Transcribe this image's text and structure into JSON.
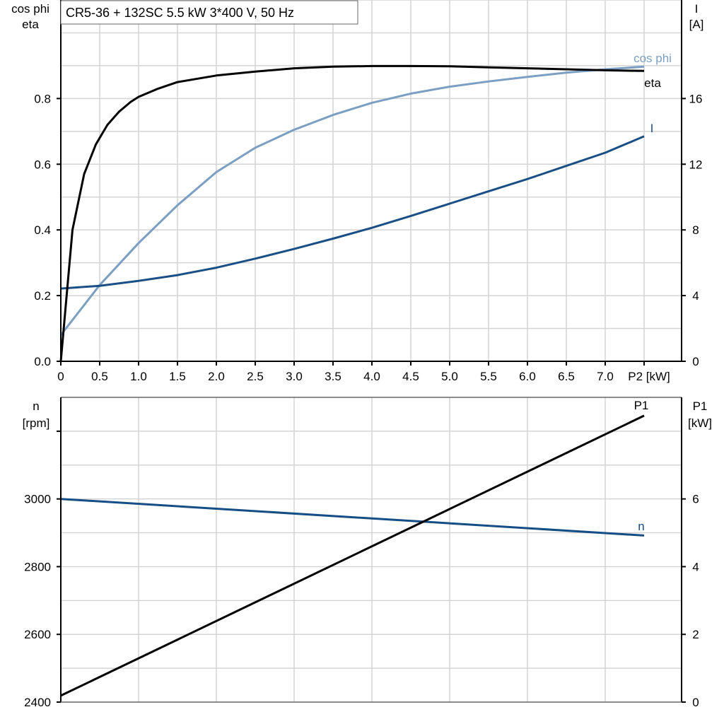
{
  "title": "CR5-36 + 132SC   5.5 kW   3*400 V, 50 Hz",
  "chart_data": [
    {
      "type": "line",
      "left_axis_label": [
        "cos phi",
        "eta"
      ],
      "right_axis_label": [
        "I",
        "[A]"
      ],
      "xlabel": "P2 [kW]",
      "xlim": [
        0,
        8
      ],
      "ylim_left": [
        0,
        1.1
      ],
      "ylim_right": [
        0,
        22
      ],
      "x_ticks": [
        "0",
        "0.5",
        "1.0",
        "1.5",
        "2.0",
        "2.5",
        "3.0",
        "3.5",
        "4.0",
        "4.5",
        "5.0",
        "5.5",
        "6.0",
        "6.5",
        "7.0"
      ],
      "left_ticks": [
        "0.0",
        "0.2",
        "0.4",
        "0.6",
        "0.8"
      ],
      "right_ticks": [
        "0",
        "4",
        "8",
        "12",
        "16"
      ],
      "grid": true,
      "series": [
        {
          "name": "eta",
          "axis": "left",
          "color": "#000000",
          "x": [
            0,
            0.15,
            0.3,
            0.45,
            0.6,
            0.75,
            0.9,
            1.0,
            1.25,
            1.5,
            2.0,
            2.5,
            3.0,
            3.5,
            4.0,
            4.5,
            5.0,
            5.5,
            6.0,
            6.5,
            7.0,
            7.5
          ],
          "y": [
            0,
            0.4,
            0.57,
            0.66,
            0.72,
            0.76,
            0.79,
            0.805,
            0.83,
            0.85,
            0.87,
            0.882,
            0.892,
            0.897,
            0.899,
            0.899,
            0.898,
            0.895,
            0.892,
            0.889,
            0.886,
            0.884
          ]
        },
        {
          "name": "cos phi",
          "axis": "left",
          "color": "#7a9fc2",
          "x": [
            0,
            0.5,
            1.0,
            1.5,
            2.0,
            2.5,
            3.0,
            3.5,
            4.0,
            4.5,
            5.0,
            5.5,
            6.0,
            6.5,
            7.0,
            7.5
          ],
          "y": [
            0.08,
            0.232,
            0.36,
            0.475,
            0.576,
            0.65,
            0.705,
            0.75,
            0.787,
            0.815,
            0.836,
            0.852,
            0.866,
            0.879,
            0.889,
            0.897
          ]
        },
        {
          "name": "I",
          "axis": "right",
          "color": "#1a4f86",
          "x": [
            0,
            0.5,
            1.0,
            1.5,
            2.0,
            2.5,
            3.0,
            3.5,
            4.0,
            4.5,
            5.0,
            5.5,
            6.0,
            6.5,
            7.0,
            7.5
          ],
          "y": [
            4.43,
            4.6,
            4.9,
            5.25,
            5.7,
            6.25,
            6.84,
            7.47,
            8.13,
            8.85,
            9.6,
            10.35,
            11.1,
            11.9,
            12.7,
            13.7
          ]
        }
      ]
    },
    {
      "type": "line",
      "left_axis_label": [
        "n",
        "[rpm]"
      ],
      "right_axis_label": [
        "P1",
        "[kW]"
      ],
      "xlim": [
        0,
        8
      ],
      "ylim_left": [
        2400,
        3300
      ],
      "ylim_right": [
        0,
        9
      ],
      "left_ticks": [
        "2400",
        "2600",
        "2800",
        "3000"
      ],
      "right_ticks": [
        "0",
        "2",
        "4",
        "6"
      ],
      "grid": true,
      "series": [
        {
          "name": "n",
          "axis": "left",
          "color": "#154d85",
          "x": [
            0,
            7.5
          ],
          "y": [
            3000,
            2892
          ]
        },
        {
          "name": "P1",
          "axis": "right",
          "color": "#000000",
          "x": [
            0,
            7.5
          ],
          "y": [
            0.19,
            8.46
          ]
        }
      ]
    }
  ]
}
